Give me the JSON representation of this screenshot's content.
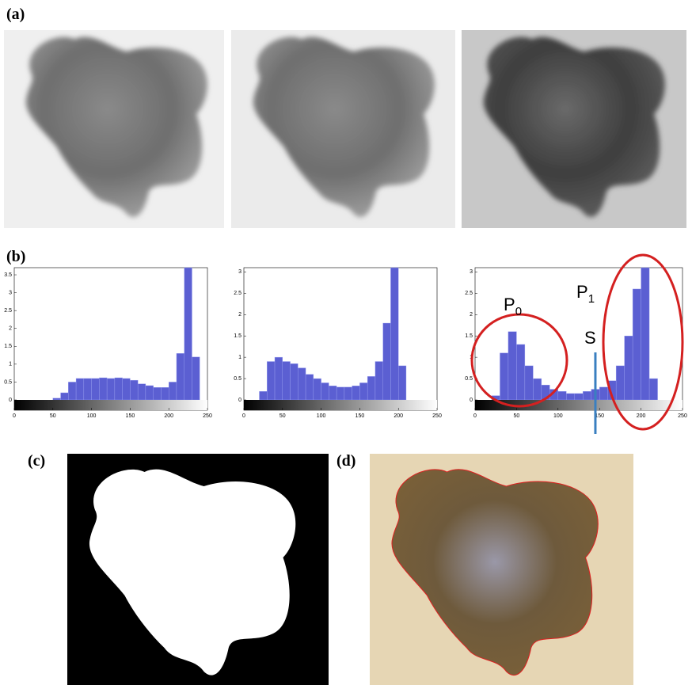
{
  "panels": {
    "a": "(a)",
    "b": "(b)",
    "c": "(c)",
    "d": "(d)"
  },
  "chart_data": [
    {
      "type": "histogram",
      "color": "#5b5fd2",
      "bins": [
        0,
        10,
        20,
        30,
        40,
        50,
        60,
        70,
        80,
        90,
        100,
        110,
        120,
        130,
        140,
        150,
        160,
        170,
        180,
        190,
        200,
        210,
        220,
        230,
        240,
        250
      ],
      "values": [
        0,
        0,
        0,
        0,
        0,
        0.05,
        0.2,
        0.5,
        0.6,
        0.6,
        0.6,
        0.62,
        0.6,
        0.62,
        0.6,
        0.55,
        0.45,
        0.4,
        0.35,
        0.35,
        0.5,
        1.3,
        3.7,
        1.2,
        0
      ],
      "xlim": [
        0,
        250
      ],
      "xticks": [
        0,
        50,
        100,
        150,
        200,
        250
      ],
      "ylim": [
        0,
        3.7
      ],
      "yticks": [
        0,
        0.5,
        1,
        1.5,
        2,
        2.5,
        3,
        3.5
      ]
    },
    {
      "type": "histogram",
      "color": "#5b5fd2",
      "bins": [
        0,
        10,
        20,
        30,
        40,
        50,
        60,
        70,
        80,
        90,
        100,
        110,
        120,
        130,
        140,
        150,
        160,
        170,
        180,
        190,
        200,
        210,
        220,
        230,
        240,
        250
      ],
      "values": [
        0,
        0,
        0.2,
        0.9,
        1.0,
        0.9,
        0.85,
        0.75,
        0.6,
        0.5,
        0.4,
        0.33,
        0.3,
        0.3,
        0.33,
        0.4,
        0.55,
        0.9,
        1.8,
        3.1,
        0.8,
        0,
        0,
        0,
        0
      ],
      "xlim": [
        0,
        250
      ],
      "xticks": [
        0,
        50,
        100,
        150,
        200,
        250
      ],
      "ylim": [
        0,
        3.1
      ],
      "yticks": [
        0,
        0.5,
        1,
        1.5,
        2,
        2.5,
        3
      ]
    },
    {
      "type": "histogram",
      "color": "#5b5fd2",
      "bins": [
        0,
        10,
        20,
        30,
        40,
        50,
        60,
        70,
        80,
        90,
        100,
        110,
        120,
        130,
        140,
        150,
        160,
        170,
        180,
        190,
        200,
        210,
        220,
        230,
        240,
        250
      ],
      "values": [
        0,
        0,
        0.1,
        1.1,
        1.6,
        1.3,
        0.8,
        0.5,
        0.35,
        0.25,
        0.2,
        0.15,
        0.15,
        0.2,
        0.25,
        0.3,
        0.45,
        0.8,
        1.5,
        2.6,
        3.1,
        0.5,
        0,
        0,
        0
      ],
      "xlim": [
        0,
        250
      ],
      "xticks": [
        0,
        50,
        100,
        150,
        200,
        250
      ],
      "ylim": [
        0,
        3.1
      ],
      "yticks": [
        0,
        0.5,
        1,
        1.5,
        2,
        2.5,
        3
      ],
      "annotations": [
        {
          "text": "P",
          "subscript": "0"
        },
        {
          "text": "P",
          "subscript": "1"
        }
      ],
      "threshold": 145,
      "threshold_label": "S"
    }
  ]
}
